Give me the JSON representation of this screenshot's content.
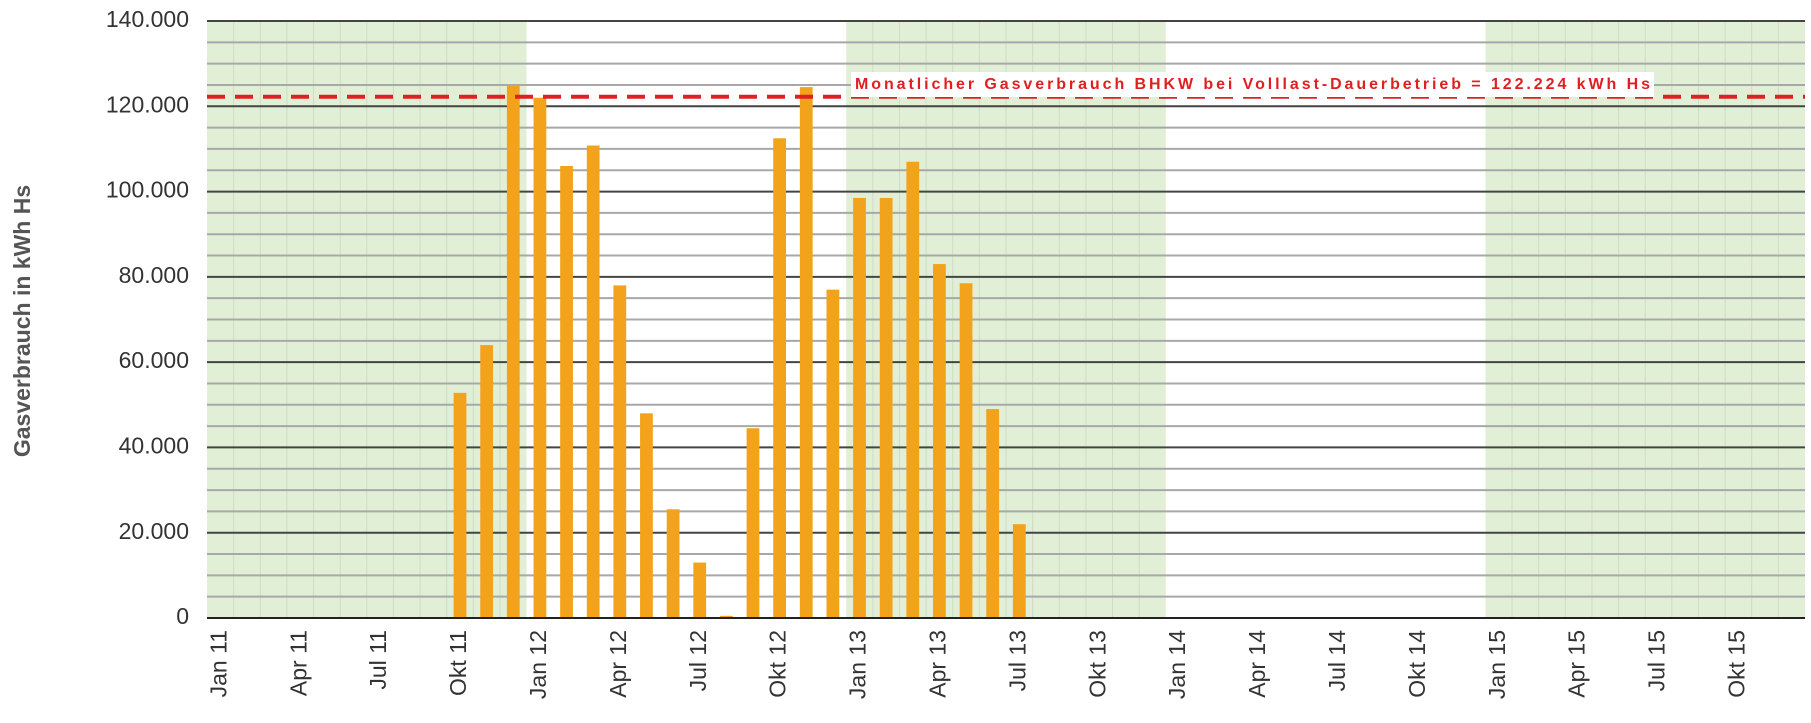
{
  "chart_data": {
    "type": "bar",
    "ylabel": "Gasverbrauch in kWh Hs",
    "categories": [
      "Jan 11",
      null,
      null,
      "Apr 11",
      null,
      null,
      "Jul 11",
      null,
      null,
      "Okt 11",
      null,
      null,
      "Jan 12",
      null,
      null,
      "Apr 12",
      null,
      null,
      "Jul 12",
      null,
      null,
      "Okt 12",
      null,
      null,
      "Jan 13",
      null,
      null,
      "Apr 13",
      null,
      null,
      "Jul 13",
      null,
      null,
      "Okt 13",
      null,
      null,
      "Jan 14",
      null,
      null,
      "Apr 14",
      null,
      null,
      "Jul 14",
      null,
      null,
      "Okt 14",
      null,
      null,
      "Jan 15",
      null,
      null,
      "Apr 15",
      null,
      null,
      "Jul 15",
      null,
      null,
      "Okt 15",
      null,
      null
    ],
    "values": [
      null,
      null,
      null,
      null,
      null,
      null,
      null,
      null,
      null,
      52800,
      64000,
      125000,
      122000,
      106000,
      110800,
      78000,
      48000,
      25500,
      13000,
      500,
      44500,
      112500,
      124500,
      77000,
      98500,
      98500,
      107000,
      83000,
      78500,
      49000,
      22000,
      null,
      null,
      null,
      null,
      null,
      null,
      null,
      null,
      null,
      null,
      null,
      null,
      null,
      null,
      null,
      null,
      null,
      null,
      null,
      null,
      null,
      null,
      null,
      null,
      null,
      null,
      null,
      null,
      null
    ],
    "color": "#f2a31b",
    "ylim": [
      0,
      140000
    ],
    "yticks": [
      0,
      {
        "value": 20000,
        "label": "20.000"
      },
      {
        "value": 40000,
        "label": "40.000"
      },
      {
        "value": 60000,
        "label": "60.000"
      },
      {
        "value": 80000,
        "label": "80.000"
      },
      {
        "value": 100000,
        "label": "100.000"
      },
      {
        "value": 120000,
        "label": "120.000"
      },
      {
        "value": 140000,
        "label": "140.000"
      }
    ],
    "yminorticks": [
      5000,
      10000,
      15000,
      25000,
      30000,
      35000,
      45000,
      50000,
      55000,
      65000,
      70000,
      75000,
      85000,
      90000,
      95000,
      105000,
      110000,
      115000,
      125000,
      130000,
      135000
    ],
    "grid": true,
    "reference_line": {
      "value": 122224,
      "color": "#e02020",
      "label": "Monatlicher Gasverbrauch BHKW bei Volllast-Dauerbetrieb = 122.224 kWh Hs"
    }
  }
}
